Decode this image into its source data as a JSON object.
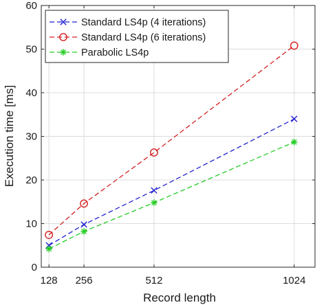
{
  "chart_data": {
    "type": "line",
    "xlabel": "Record length",
    "ylabel": "Execution time [ms]",
    "x": [
      128,
      256,
      512,
      1024
    ],
    "x_ticks": [
      128,
      256,
      512,
      1024
    ],
    "x_tick_labels": [
      "128",
      "256",
      "512",
      "1024"
    ],
    "xlim": [
      100,
      1100
    ],
    "ylim": [
      0,
      60
    ],
    "y_ticks": [
      0,
      10,
      20,
      30,
      40,
      50,
      60
    ],
    "y_tick_labels": [
      "0",
      "10",
      "20",
      "30",
      "40",
      "50",
      "60"
    ],
    "grid": true,
    "legend_placement": "top-left",
    "series": [
      {
        "name": "Standard LS4p (4 iterations)",
        "values": [
          5.0,
          9.8,
          17.6,
          34.0
        ],
        "color": "#1f1fd0",
        "marker": "x",
        "line_style": "dashed"
      },
      {
        "name": "Standard LS4p (6 iterations)",
        "values": [
          7.4,
          14.6,
          26.3,
          50.8
        ],
        "color": "#d42020",
        "marker": "circle",
        "line_style": "dashed"
      },
      {
        "name": "Parabolic LS4p",
        "values": [
          4.2,
          8.2,
          14.8,
          28.7
        ],
        "color": "#22cc22",
        "marker": "asterisk",
        "line_style": "dashed"
      }
    ]
  }
}
